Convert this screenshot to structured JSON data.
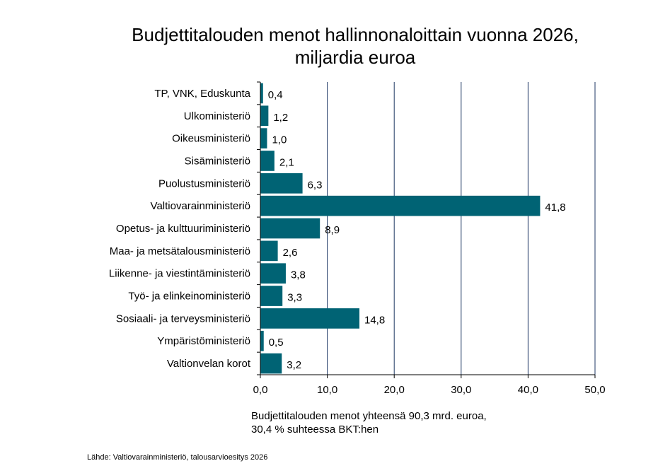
{
  "chart_data": {
    "type": "bar",
    "orientation": "horizontal",
    "title_lines": [
      "Budjettitalouden menot hallinnonaloittain vuonna 2026,",
      "miljardia euroa"
    ],
    "categories": [
      "TP, VNK, Eduskunta",
      "Ulkoministeriö",
      "Oikeusministeriö",
      "Sisäministeriö",
      "Puolustusministeriö",
      "Valtiovarainministeriö",
      "Opetus- ja kulttuuriministeriö",
      "Maa- ja metsätalousministeriö",
      "Liikenne- ja viestintäministeriö",
      "Työ- ja elinkeinoministeriö",
      "Sosiaali- ja terveysministeriö",
      "Ympäristöministeriö",
      "Valtionvelan korot"
    ],
    "values": [
      0.4,
      1.2,
      1.0,
      2.1,
      6.3,
      41.8,
      8.9,
      2.6,
      3.8,
      3.3,
      14.8,
      0.5,
      3.2
    ],
    "value_labels": [
      "0,4",
      "1,2",
      "1,0",
      "2,1",
      "6,3",
      "41,8",
      "8,9",
      "2,6",
      "3,8",
      "3,3",
      "14,8",
      "0,5",
      "3,2"
    ],
    "xlim": [
      0,
      50
    ],
    "xticks": [
      0,
      10,
      20,
      30,
      40,
      50
    ],
    "xtick_labels": [
      "0,0",
      "10,0",
      "20,0",
      "30,0",
      "40,0",
      "50,0"
    ],
    "grid": true,
    "bar_color": "#006374",
    "grid_color": "#1F3864",
    "note_lines": [
      "Budjettitalouden menot yhteensä 90,3 mrd. euroa,",
      "30,4 % suhteessa BKT:hen"
    ],
    "source": "Lähde: Valtiovarainministeriö, talousarvioesitys 2026"
  }
}
